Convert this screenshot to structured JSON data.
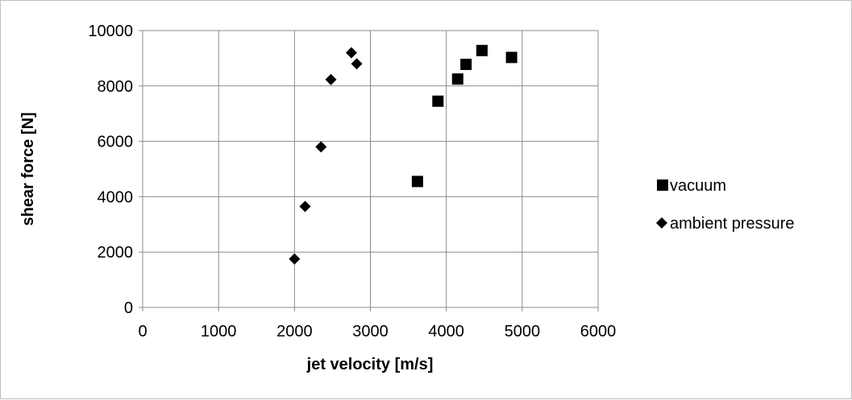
{
  "chart_data": {
    "type": "scatter",
    "title": "",
    "xlabel": "jet velocity [m/s]",
    "ylabel": "shear force [N]",
    "xlim": [
      0,
      6000
    ],
    "ylim": [
      0,
      10000
    ],
    "x_ticks": [
      0,
      1000,
      2000,
      3000,
      4000,
      5000,
      6000
    ],
    "y_ticks": [
      0,
      2000,
      4000,
      6000,
      8000,
      10000
    ],
    "grid": true,
    "legend_position": "right",
    "series": [
      {
        "name": "vacuum",
        "marker": "square",
        "color": "#000000",
        "points": [
          {
            "x": 3620,
            "y": 4550
          },
          {
            "x": 3890,
            "y": 7450
          },
          {
            "x": 4150,
            "y": 8250
          },
          {
            "x": 4260,
            "y": 8780
          },
          {
            "x": 4470,
            "y": 9280
          },
          {
            "x": 4860,
            "y": 9030
          }
        ]
      },
      {
        "name": "ambient pressure",
        "marker": "diamond",
        "color": "#000000",
        "points": [
          {
            "x": 2000,
            "y": 1750
          },
          {
            "x": 2140,
            "y": 3650
          },
          {
            "x": 2350,
            "y": 5800
          },
          {
            "x": 2480,
            "y": 8230
          },
          {
            "x": 2750,
            "y": 9200
          },
          {
            "x": 2820,
            "y": 8800
          }
        ]
      }
    ]
  }
}
